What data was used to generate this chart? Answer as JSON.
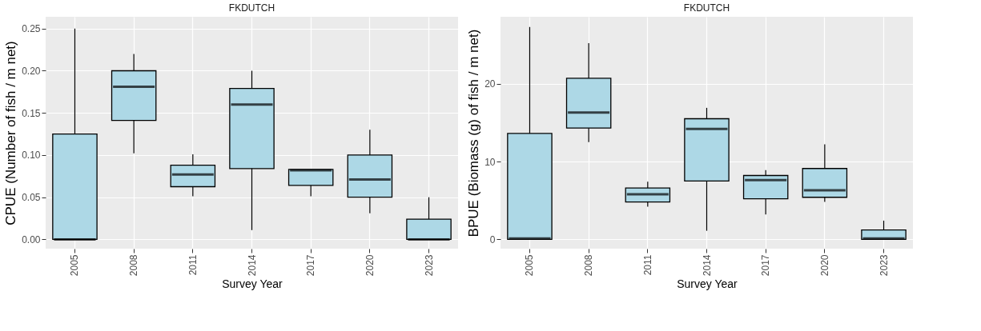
{
  "chart_data": [
    {
      "type": "box",
      "title": "FKDUTCH",
      "xlabel": "Survey Year",
      "ylabel": "CPUE (Number of fish / m net)",
      "color": "#add8e6",
      "grid": true,
      "categories": [
        "2005",
        "2008",
        "2011",
        "2014",
        "2017",
        "2020",
        "2023"
      ],
      "boxes": [
        {
          "low": 0,
          "q1": 0,
          "median": 0,
          "q3": 0.125,
          "high": 0.25
        },
        {
          "low": 0.102,
          "q1": 0.141,
          "median": 0.181,
          "q3": 0.2,
          "high": 0.22
        },
        {
          "low": 0.051,
          "q1": 0.0625,
          "median": 0.077,
          "q3": 0.088,
          "high": 0.101
        },
        {
          "low": 0.011,
          "q1": 0.084,
          "median": 0.16,
          "q3": 0.179,
          "high": 0.2
        },
        {
          "low": 0.051,
          "q1": 0.064,
          "median": 0.082,
          "q3": 0.083,
          "high": 0.083
        },
        {
          "low": 0.031,
          "q1": 0.05,
          "median": 0.071,
          "q3": 0.1,
          "high": 0.13
        },
        {
          "low": 0,
          "q1": 0,
          "median": 0,
          "q3": 0.024,
          "high": 0.05
        }
      ],
      "ylim": [
        -0.011,
        0.264
      ],
      "yticks": [
        {
          "value": 0,
          "label": "0.00"
        },
        {
          "value": 0.05,
          "label": "0.05"
        },
        {
          "value": 0.1,
          "label": "0.10"
        },
        {
          "value": 0.15,
          "label": "0.15"
        },
        {
          "value": 0.2,
          "label": "0.20"
        },
        0.25
      ]
    },
    {
      "type": "box",
      "title": "FKDUTCH",
      "xlabel": "Survey Year",
      "ylabel": "BPUE (Biomass (g) of fish / m net)",
      "color": "#add8e6",
      "grid": true,
      "categories": [
        "2005",
        "2008",
        "2011",
        "2014",
        "2017",
        "2020",
        "2023"
      ],
      "boxes": [
        {
          "low": 0,
          "q1": 0,
          "median": 0.1,
          "q3": 13.6,
          "high": 27.3
        },
        {
          "low": 12.5,
          "q1": 14.3,
          "median": 16.3,
          "q3": 20.7,
          "high": 25.2
        },
        {
          "low": 4.2,
          "q1": 4.8,
          "median": 5.8,
          "q3": 6.6,
          "high": 7.4
        },
        {
          "low": 1.1,
          "q1": 7.5,
          "median": 14.2,
          "q3": 15.5,
          "high": 16.9
        },
        {
          "low": 3.2,
          "q1": 5.2,
          "median": 7.6,
          "q3": 8.2,
          "high": 8.9
        },
        {
          "low": 4.8,
          "q1": 5.4,
          "median": 6.3,
          "q3": 9.1,
          "high": 12.2
        },
        {
          "low": 0,
          "q1": 0,
          "median": 0.1,
          "q3": 1.2,
          "high": 2.4
        }
      ],
      "ylim": [
        -1.2,
        28.6
      ],
      "yticks": [
        0,
        10,
        20
      ]
    }
  ]
}
